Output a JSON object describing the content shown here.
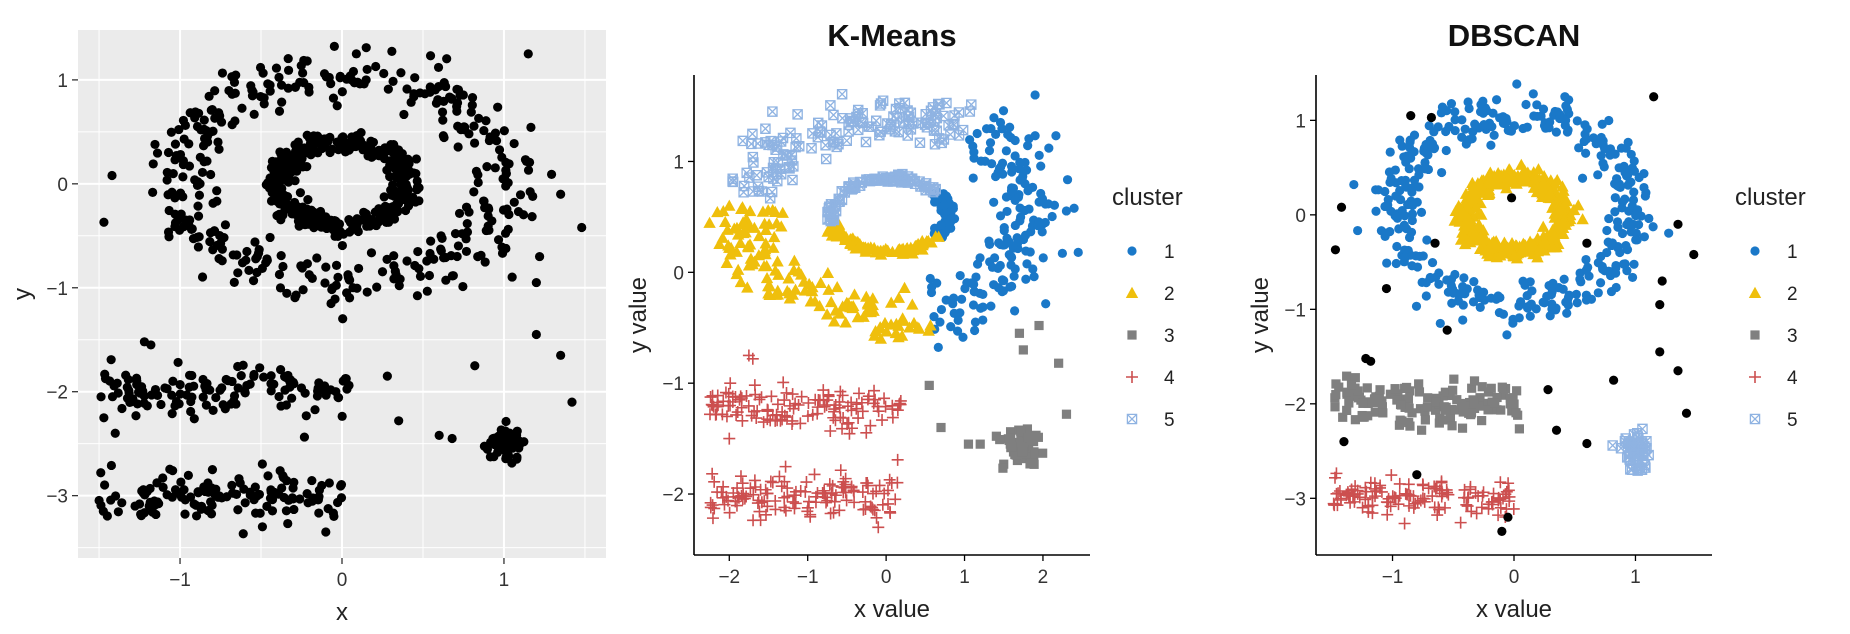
{
  "chart_data": [
    {
      "type": "scatter",
      "title": "",
      "xlabel": "x",
      "ylabel": "y",
      "xlim": [
        -1.63,
        1.63
      ],
      "ylim": [
        -3.6,
        1.48
      ],
      "xticks": [
        -1,
        0,
        1
      ],
      "yticks": [
        -3,
        -2,
        -1,
        0,
        1
      ],
      "background": "gray-grid",
      "grid": true,
      "legend": "none",
      "color": "#000000",
      "series": [
        {
          "structure": "ring",
          "cx": 0,
          "cy": 0.05,
          "r": 1.0,
          "noise": 0.12,
          "n": 380,
          "seed": 11
        },
        {
          "structure": "ring",
          "cx": 0,
          "cy": 0.0,
          "r": 0.4,
          "noise": 0.045,
          "n": 420,
          "seed": 12
        },
        {
          "structure": "band",
          "xmin": -1.5,
          "xmax": 0.05,
          "y": -2.0,
          "noise": 0.12,
          "n": 130,
          "seed": 13
        },
        {
          "structure": "band",
          "xmin": -1.5,
          "xmax": 0.0,
          "y": -3.0,
          "noise": 0.11,
          "n": 130,
          "seed": 14
        },
        {
          "structure": "blob",
          "cx": 1.0,
          "cy": -2.5,
          "sx": 0.06,
          "sy": 0.1,
          "n": 55,
          "seed": 15
        },
        {
          "structure": "points",
          "points": [
            [
              1.15,
              1.25
            ],
            [
              -0.68,
              1.03
            ],
            [
              -1.42,
              0.08
            ],
            [
              -1.47,
              -0.37
            ],
            [
              1.35,
              -0.1
            ],
            [
              1.48,
              -0.42
            ],
            [
              1.22,
              -0.7
            ],
            [
              1.2,
              -1.45
            ],
            [
              1.2,
              -0.95
            ],
            [
              1.35,
              -1.65
            ],
            [
              1.42,
              -2.1
            ],
            [
              0.28,
              -1.85
            ],
            [
              0.35,
              -2.28
            ],
            [
              0.82,
              -1.75
            ],
            [
              -1.22,
              -1.52
            ],
            [
              -1.18,
              -1.55
            ],
            [
              -1.4,
              -2.4
            ],
            [
              -0.8,
              -2.75
            ],
            [
              -0.1,
              -3.35
            ],
            [
              -0.05,
              -3.2
            ],
            [
              0.6,
              -2.42
            ],
            [
              0.68,
              -2.45
            ]
          ]
        }
      ]
    },
    {
      "type": "scatter",
      "title": "K-Means",
      "xlabel": "x value",
      "ylabel": "y value",
      "xlim": [
        -2.45,
        2.6
      ],
      "ylim": [
        -2.55,
        1.78
      ],
      "xticks": [
        -2,
        -1,
        0,
        1,
        2
      ],
      "yticks": [
        -2,
        -1,
        0,
        1
      ],
      "grid": false,
      "legend": "right",
      "legend_title": "cluster",
      "legend_items": [
        "1",
        "2",
        "3",
        "4",
        "5"
      ],
      "colors": {
        "1": "#1a78c8",
        "2": "#efbf0c",
        "3": "#7f7f7f",
        "4": "#cc4f4f",
        "5": "#8fb3e2"
      },
      "shapes": {
        "1": "circle",
        "2": "triangle",
        "3": "square",
        "4": "plus",
        "5": "square-cross"
      },
      "series": [
        {
          "name": "1",
          "structure": "arc",
          "cx": 0.3,
          "cy": 0.55,
          "r": 1.1,
          "rx": 1.55,
          "ry": 0.95,
          "a0": -80,
          "a1": 55,
          "noise": 0.16,
          "n": 170,
          "seed": 21
        },
        {
          "name": "1",
          "structure": "arc",
          "cx": 0.05,
          "cy": 0.52,
          "rx": 0.75,
          "ry": 0.33,
          "a0": -35,
          "a1": 38,
          "noise": 0.05,
          "n": 120,
          "seed": 22
        },
        {
          "name": "1",
          "structure": "points",
          "points": [
            [
              1.9,
              1.6
            ],
            [
              2.45,
              0.18
            ]
          ]
        },
        {
          "name": "2",
          "structure": "arc",
          "cx": 0.05,
          "cy": 0.45,
          "rx": 1.85,
          "ry": 0.85,
          "a0": 170,
          "a1": 285,
          "noise": 0.14,
          "n": 140,
          "seed": 23
        },
        {
          "name": "2",
          "structure": "arc",
          "cx": 0.05,
          "cy": 0.52,
          "rx": 0.75,
          "ry": 0.33,
          "a0": 195,
          "a1": 325,
          "noise": 0.05,
          "n": 110,
          "seed": 24
        },
        {
          "name": "2",
          "structure": "points",
          "points": [
            [
              -2.0,
              0.6
            ],
            [
              -2.0,
              0.22
            ]
          ]
        },
        {
          "name": "3",
          "structure": "blob",
          "cx": 1.72,
          "cy": -1.6,
          "sx": 0.12,
          "sy": 0.09,
          "n": 55,
          "seed": 25
        },
        {
          "name": "3",
          "structure": "points",
          "points": [
            [
              1.95,
              -0.48
            ],
            [
              1.7,
              -0.55
            ],
            [
              1.75,
              -0.7
            ],
            [
              2.2,
              -0.82
            ],
            [
              0.55,
              -1.02
            ],
            [
              0.7,
              -1.4
            ],
            [
              1.05,
              -1.55
            ],
            [
              1.2,
              -1.55
            ],
            [
              2.3,
              -1.28
            ]
          ]
        },
        {
          "name": "4",
          "structure": "band",
          "xmin": -2.25,
          "xmax": 0.2,
          "y": -1.22,
          "noise": 0.1,
          "n": 130,
          "seed": 26
        },
        {
          "name": "4",
          "structure": "band",
          "xmin": -2.25,
          "xmax": 0.15,
          "y": -2.02,
          "noise": 0.1,
          "n": 130,
          "seed": 27
        },
        {
          "name": "4",
          "structure": "points",
          "points": [
            [
              -1.75,
              -0.75
            ],
            [
              -1.7,
              -0.78
            ],
            [
              -2.0,
              -1.5
            ],
            [
              -0.1,
              -2.3
            ]
          ]
        },
        {
          "name": "5",
          "structure": "arc",
          "cx": 0.05,
          "cy": 0.45,
          "rx": 1.85,
          "ry": 0.95,
          "a0": 60,
          "a1": 165,
          "noise": 0.12,
          "n": 150,
          "seed": 28
        },
        {
          "name": "5",
          "structure": "arc",
          "cx": 0.05,
          "cy": 0.52,
          "rx": 0.75,
          "ry": 0.33,
          "a0": 40,
          "a1": 190,
          "noise": 0.05,
          "n": 100,
          "seed": 29
        },
        {
          "name": "5",
          "structure": "points",
          "points": [
            [
              -1.45,
              1.45
            ],
            [
              -1.5,
              1.15
            ]
          ]
        }
      ]
    },
    {
      "type": "scatter",
      "title": "DBSCAN",
      "xlabel": "x value",
      "ylabel": "y value",
      "xlim": [
        -1.63,
        1.63
      ],
      "ylim": [
        -3.6,
        1.48
      ],
      "xticks": [
        -1,
        0,
        1
      ],
      "yticks": [
        -3,
        -2,
        -1,
        0,
        1
      ],
      "grid": false,
      "legend": "right",
      "legend_title": "cluster",
      "legend_items": [
        "1",
        "2",
        "3",
        "4",
        "5"
      ],
      "colors": {
        "0": "#000000",
        "1": "#1a78c8",
        "2": "#efbf0c",
        "3": "#7f7f7f",
        "4": "#cc4f4f",
        "5": "#8fb3e2"
      },
      "shapes": {
        "0": "circle",
        "1": "circle",
        "2": "triangle",
        "3": "square",
        "4": "plus",
        "5": "square-cross"
      },
      "series": [
        {
          "name": "1",
          "structure": "ring",
          "cx": 0,
          "cy": 0.05,
          "r": 1.0,
          "noise": 0.12,
          "n": 380,
          "seed": 31
        },
        {
          "name": "2",
          "structure": "ring",
          "cx": 0,
          "cy": 0.0,
          "r": 0.4,
          "noise": 0.045,
          "n": 420,
          "seed": 32
        },
        {
          "name": "3",
          "structure": "band",
          "xmin": -1.5,
          "xmax": 0.05,
          "y": -2.0,
          "noise": 0.12,
          "n": 130,
          "seed": 33
        },
        {
          "name": "4",
          "structure": "band",
          "xmin": -1.5,
          "xmax": 0.0,
          "y": -3.0,
          "noise": 0.11,
          "n": 130,
          "seed": 34
        },
        {
          "name": "5",
          "structure": "blob",
          "cx": 1.0,
          "cy": -2.5,
          "sx": 0.06,
          "sy": 0.1,
          "n": 55,
          "seed": 35
        },
        {
          "name": "0",
          "structure": "points",
          "points": [
            [
              1.15,
              1.25
            ],
            [
              -0.68,
              1.03
            ],
            [
              -0.85,
              1.05
            ],
            [
              -1.42,
              0.08
            ],
            [
              -1.47,
              -0.37
            ],
            [
              -1.05,
              -0.78
            ],
            [
              1.35,
              -0.1
            ],
            [
              1.48,
              -0.42
            ],
            [
              1.22,
              -0.7
            ],
            [
              1.2,
              -1.45
            ],
            [
              1.2,
              -0.95
            ],
            [
              1.35,
              -1.65
            ],
            [
              1.42,
              -2.1
            ],
            [
              0.28,
              -1.85
            ],
            [
              0.35,
              -2.28
            ],
            [
              0.82,
              -1.75
            ],
            [
              0.6,
              -0.3
            ],
            [
              -0.55,
              -1.22
            ],
            [
              -0.65,
              -0.3
            ],
            [
              -1.22,
              -1.52
            ],
            [
              -1.18,
              -1.55
            ],
            [
              -1.4,
              -2.4
            ],
            [
              -0.8,
              -2.75
            ],
            [
              -0.1,
              -3.35
            ],
            [
              -0.05,
              -3.2
            ],
            [
              0.6,
              -2.42
            ],
            [
              -0.02,
              0.18
            ]
          ]
        }
      ]
    }
  ]
}
